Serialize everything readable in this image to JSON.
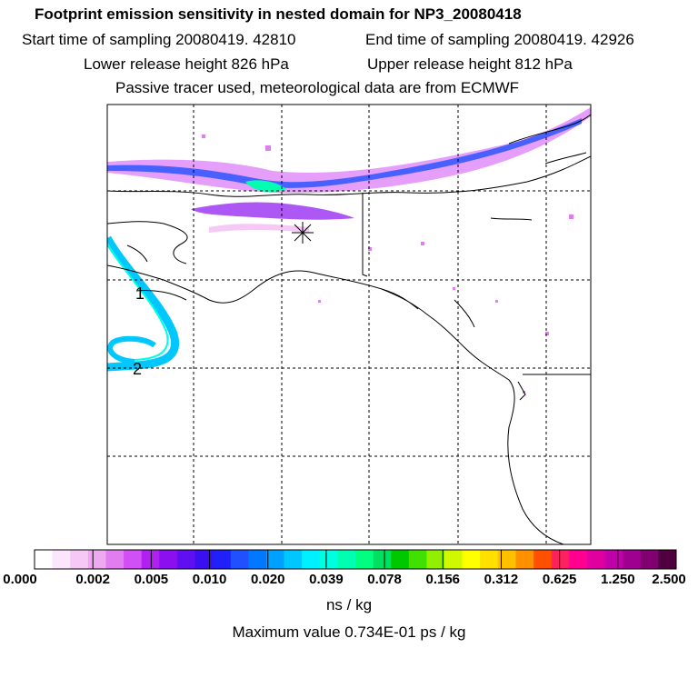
{
  "header": {
    "title": "Footprint emission sensitivity in nested domain for NP3_20080418",
    "start_time": "Start time of sampling 20080419. 42810",
    "end_time": "End time of sampling 20080419. 42926",
    "lower_release": "Lower release height  826 hPa",
    "upper_release": "Upper release height  812 hPa",
    "tracer_info": "Passive tracer used, meteorological data are from ECMWF"
  },
  "map": {
    "trajectory_labels": [
      "1",
      "2"
    ],
    "release_marker": "release-point-asterisk"
  },
  "colorbar": {
    "labels": [
      "0.000",
      "0.002",
      "0.005",
      "0.010",
      "0.020",
      "0.039",
      "0.078",
      "0.156",
      "0.312",
      "0.625",
      "1.250",
      "2.500"
    ],
    "colors": [
      "#ffffff",
      "#fbe6fb",
      "#f5c8f5",
      "#eeaaf0",
      "#e07ef0",
      "#d050f5",
      "#b020f0",
      "#8a10f0",
      "#6010f0",
      "#3a10f0",
      "#2020f8",
      "#2050ff",
      "#0078ff",
      "#00a0ff",
      "#00c8ff",
      "#00f0ff",
      "#00ffe0",
      "#00ffb0",
      "#00ff80",
      "#00e060",
      "#00c800",
      "#40e000",
      "#90f000",
      "#d0f800",
      "#ffff00",
      "#ffe000",
      "#ffc000",
      "#ff9000",
      "#ff5000",
      "#ff2060",
      "#ff0090",
      "#e000a0",
      "#c000a8",
      "#a00090",
      "#800070",
      "#500040"
    ],
    "unit": "ns / kg",
    "max_value": "Maximum value  0.734E-01 ps / kg"
  }
}
